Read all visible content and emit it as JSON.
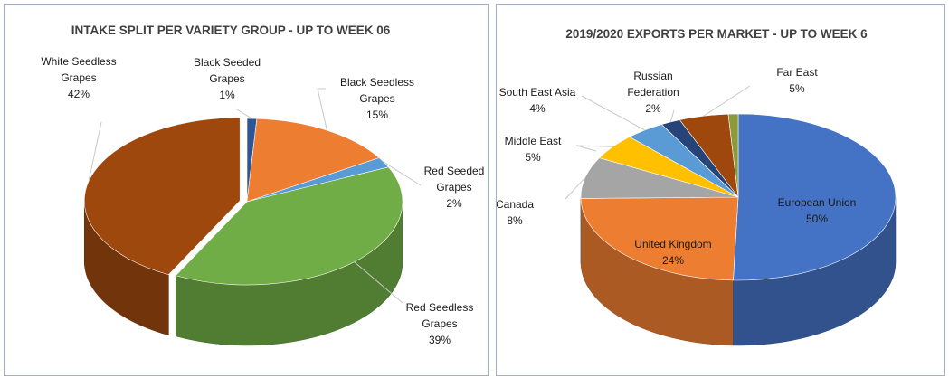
{
  "chart_data": [
    {
      "type": "pie",
      "title": "INTAKE SPLIT PER VARIETY GROUP - UP TO WEEK 06",
      "slices": [
        {
          "lines": [
            "Black Seeded",
            "Grapes"
          ],
          "value": 1,
          "label": "1%",
          "color": "#2e5597"
        },
        {
          "lines": [
            "Black Seedless",
            "Grapes"
          ],
          "value": 15,
          "label": "15%",
          "color": "#ed7d31"
        },
        {
          "lines": [
            "Red Seeded",
            "Grapes"
          ],
          "value": 2,
          "label": "2%",
          "color": "#5b9bd5"
        },
        {
          "lines": [
            "Red Seedless",
            "Grapes"
          ],
          "value": 39,
          "label": "39%",
          "color": "#70ad47"
        },
        {
          "lines": [
            "White Seedless",
            "Grapes"
          ],
          "value": 42,
          "label": "42%",
          "color": "#9e480e"
        }
      ]
    },
    {
      "type": "pie",
      "title": "2019/2020 EXPORTS PER MARKET - UP TO WEEK 6",
      "slices": [
        {
          "lines": [
            "European Union"
          ],
          "value": 50,
          "label": "50%",
          "color": "#4472c4"
        },
        {
          "lines": [
            "United Kingdom"
          ],
          "value": 24,
          "label": "24%",
          "color": "#ed7d31"
        },
        {
          "lines": [
            "Canada"
          ],
          "value": 8,
          "label": "8%",
          "color": "#a5a5a5"
        },
        {
          "lines": [
            "Middle East"
          ],
          "value": 5,
          "label": "5%",
          "color": "#ffc000"
        },
        {
          "lines": [
            "South East Asia"
          ],
          "value": 4,
          "label": "4%",
          "color": "#5b9bd5"
        },
        {
          "lines": [
            "Russian",
            "Federation"
          ],
          "value": 2,
          "label": "2%",
          "color": "#264478"
        },
        {
          "lines": [
            "Far East"
          ],
          "value": 5,
          "label": "5%",
          "color": "#9e480e"
        },
        {
          "lines": [],
          "value": 1,
          "label": "",
          "color": "#8c9a3c"
        }
      ]
    }
  ]
}
